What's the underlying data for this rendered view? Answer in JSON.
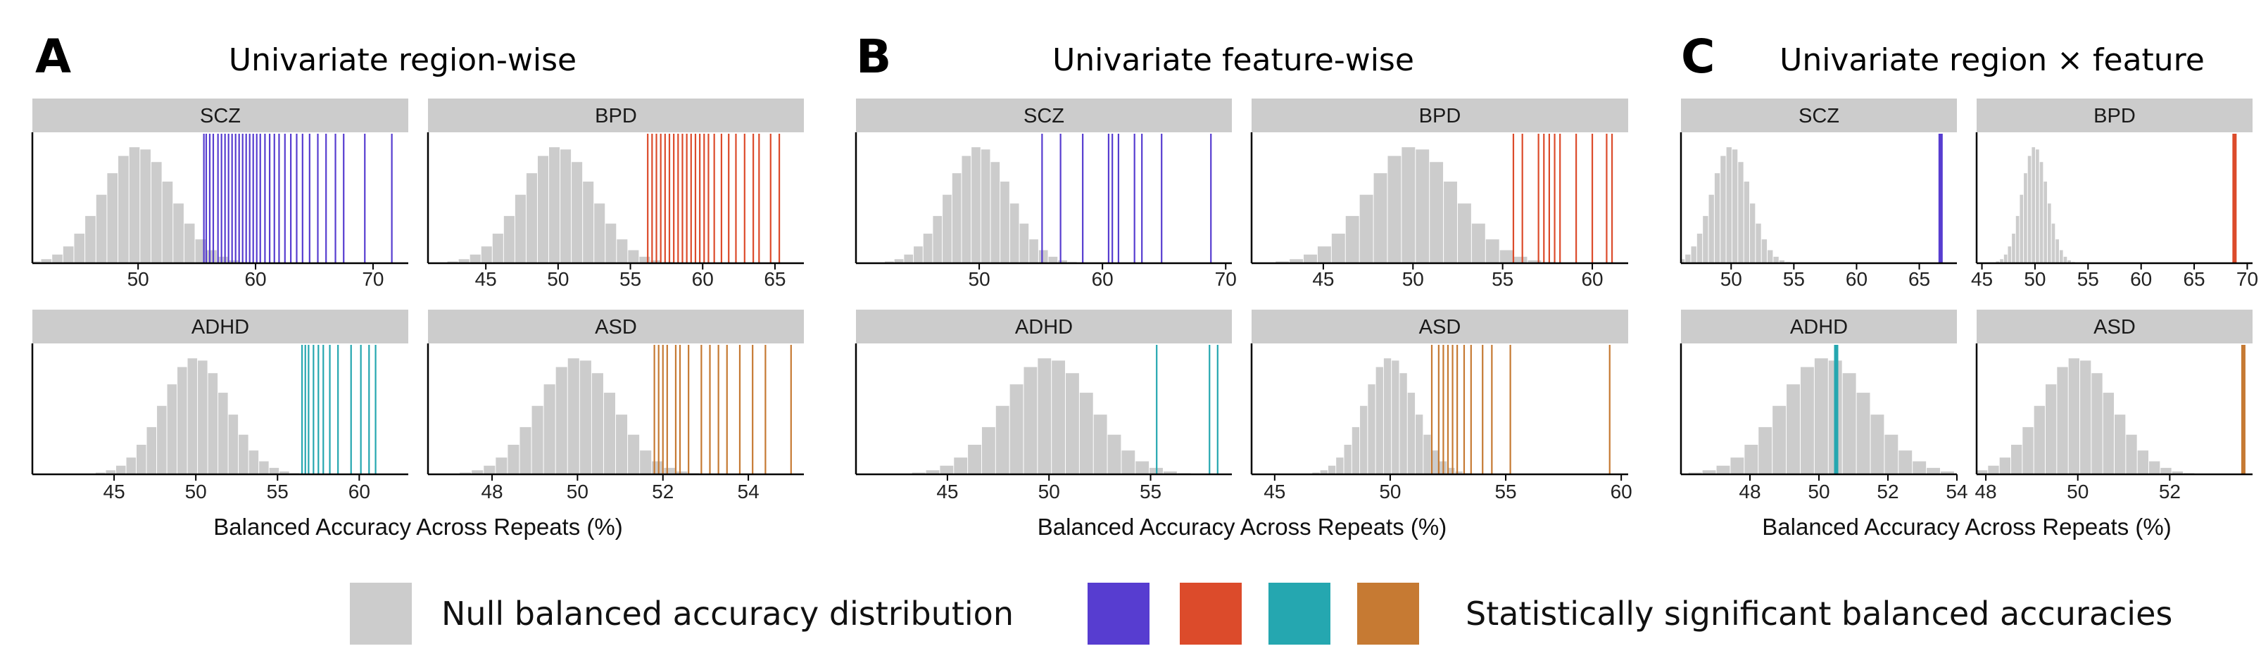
{
  "colors": {
    "null_fill": "#CCCCCC",
    "strip_fill": "#CCCCCC",
    "SCZ": "#573DD0",
    "BPD": "#DC4B2B",
    "ADHD": "#25A7B0",
    "ASD": "#C67A33"
  },
  "legend": {
    "null_label": "Null balanced accuracy distribution",
    "sig_label": "Statistically significant balanced accuracies",
    "sig_swatches": [
      "SCZ",
      "BPD",
      "ADHD",
      "ASD"
    ]
  },
  "chart_data": [
    {
      "type": "histogram",
      "panel_letter": "A",
      "title": "Univariate region-wise",
      "xlabel": "Balanced Accuracy Across Repeats (%)",
      "facets": [
        {
          "label": "SCZ",
          "xlim": [
            41,
            73
          ],
          "xticks": [
            50,
            60,
            70
          ],
          "null_mean": 50,
          "null_sd": 3,
          "significant": [
            55.6,
            55.8,
            56.1,
            56.4,
            56.8,
            57.1,
            57.4,
            57.7,
            58.0,
            58.3,
            58.6,
            58.9,
            59.2,
            59.5,
            59.8,
            60.1,
            60.4,
            60.8,
            61.2,
            61.6,
            62.0,
            62.5,
            63.0,
            63.5,
            64.0,
            64.6,
            65.3,
            66.0,
            66.8,
            67.5,
            69.3,
            71.6
          ]
        },
        {
          "label": "BPD",
          "xlim": [
            41,
            67
          ],
          "xticks": [
            45,
            50,
            55,
            60,
            65
          ],
          "null_mean": 50,
          "null_sd": 2.5,
          "significant": [
            56.2,
            56.5,
            56.8,
            57.1,
            57.4,
            57.7,
            58.0,
            58.3,
            58.6,
            58.9,
            59.2,
            59.5,
            59.8,
            60.1,
            60.4,
            60.8,
            61.3,
            61.8,
            62.3,
            62.9,
            63.5,
            63.9,
            64.7,
            65.3
          ]
        },
        {
          "label": "ADHD",
          "xlim": [
            40,
            63
          ],
          "xticks": [
            45,
            50,
            55,
            60
          ],
          "null_mean": 50,
          "null_sd": 2,
          "significant": [
            56.5,
            56.7,
            56.9,
            57.2,
            57.5,
            57.8,
            58.2,
            58.7,
            59.5,
            60.1,
            60.6,
            61.0
          ]
        },
        {
          "label": "ASD",
          "xlim": [
            46.5,
            55.3
          ],
          "xticks": [
            48,
            50,
            52,
            54
          ],
          "null_mean": 50,
          "null_sd": 0.9,
          "significant": [
            51.8,
            51.9,
            52.0,
            52.1,
            52.3,
            52.4,
            52.6,
            52.9,
            53.1,
            53.3,
            53.5,
            53.8,
            54.1,
            54.4,
            55.0
          ]
        }
      ]
    },
    {
      "type": "histogram",
      "panel_letter": "B",
      "title": "Univariate feature-wise",
      "xlabel": "Balanced Accuracy Across Repeats (%)",
      "facets": [
        {
          "label": "SCZ",
          "xlim": [
            40,
            70.5
          ],
          "xticks": [
            50,
            60,
            70
          ],
          "null_mean": 50,
          "null_sd": 2.5,
          "significant": [
            55.1,
            56.6,
            58.4,
            60.5,
            60.8,
            61.3,
            62.6,
            63.2,
            64.8,
            68.8
          ]
        },
        {
          "label": "BPD",
          "xlim": [
            41,
            62
          ],
          "xticks": [
            45,
            50,
            55,
            60
          ],
          "null_mean": 50,
          "null_sd": 2.5,
          "significant": [
            55.6,
            56.1,
            57.0,
            57.3,
            57.6,
            57.9,
            58.2,
            59.1,
            60.0,
            60.8,
            61.1
          ]
        },
        {
          "label": "ADHD",
          "xlim": [
            40.5,
            59
          ],
          "xticks": [
            45,
            50,
            55
          ],
          "null_mean": 50,
          "null_sd": 2.2,
          "significant": [
            55.3,
            57.9,
            58.3
          ]
        },
        {
          "label": "ASD",
          "xlim": [
            44,
            60.3
          ],
          "xticks": [
            45,
            50,
            55,
            60
          ],
          "null_mean": 50,
          "null_sd": 1.1,
          "significant": [
            51.8,
            52.1,
            52.3,
            52.5,
            52.7,
            52.9,
            53.2,
            53.5,
            54.0,
            54.4,
            55.2,
            59.5
          ]
        }
      ]
    },
    {
      "type": "histogram",
      "panel_letter": "C",
      "title": "Univariate region × feature",
      "xlabel": "Balanced Accuracy Across Repeats (%)",
      "facets": [
        {
          "label": "SCZ",
          "xlim": [
            46,
            68
          ],
          "xticks": [
            50,
            55,
            60,
            65
          ],
          "null_mean": 50,
          "null_sd": 1.5,
          "significant": [
            66.7
          ]
        },
        {
          "label": "BPD",
          "xlim": [
            44.5,
            70.5
          ],
          "xticks": [
            45,
            50,
            55,
            60,
            65,
            70
          ],
          "null_mean": 50,
          "null_sd": 1.2,
          "significant": [
            68.8
          ]
        },
        {
          "label": "ADHD",
          "xlim": [
            46,
            54
          ],
          "xticks": [
            48,
            50,
            52,
            54
          ],
          "null_mean": 50.2,
          "null_sd": 1.3,
          "significant": [
            50.5
          ]
        },
        {
          "label": "ASD",
          "xlim": [
            47.8,
            53.8
          ],
          "xticks": [
            48,
            50,
            52
          ],
          "null_mean": 50,
          "null_sd": 0.8,
          "significant": [
            53.6
          ]
        }
      ]
    }
  ]
}
